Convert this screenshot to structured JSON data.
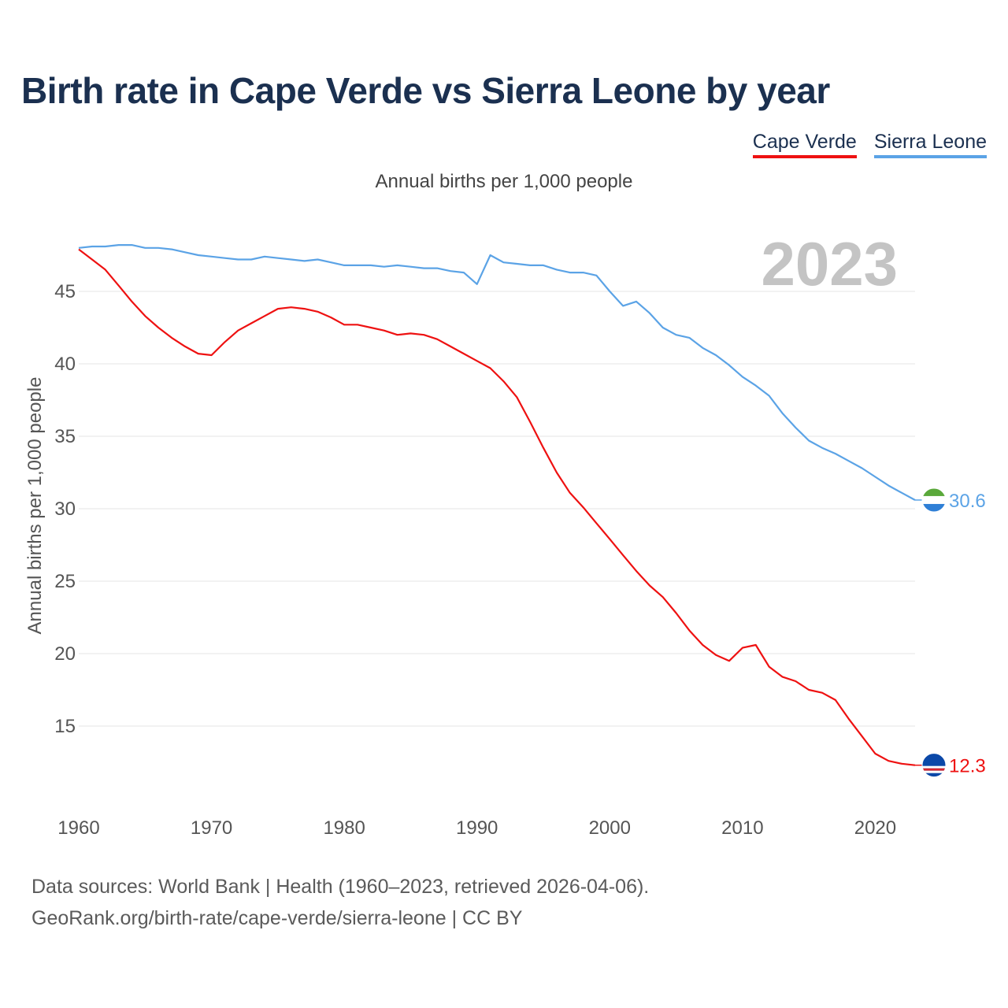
{
  "title": "Birth rate in Cape Verde vs Sierra Leone by year",
  "legend": [
    {
      "label": "Cape Verde",
      "color": "#ee1111"
    },
    {
      "label": "Sierra Leone",
      "color": "#5ba3e6"
    }
  ],
  "subtitle": "Annual births per 1,000 people",
  "year_display": "2023",
  "source": {
    "line1": "Data sources: World Bank | Health (1960–2023, retrieved 2026-04-06).",
    "line2": "GeoRank.org/birth-rate/cape-verde/sierra-leone | CC BY"
  },
  "chart_data": {
    "type": "line",
    "title": "Birth rate in Cape Verde vs Sierra Leone by year",
    "xlabel": "",
    "ylabel": "Annual births per 1,000 people",
    "xlim": [
      1960,
      2023
    ],
    "ylim": [
      10,
      50
    ],
    "x_ticks": [
      1960,
      1970,
      1980,
      1990,
      2000,
      2010,
      2020
    ],
    "y_ticks": [
      15,
      20,
      25,
      30,
      35,
      40,
      45
    ],
    "x": [
      1960,
      1961,
      1962,
      1963,
      1964,
      1965,
      1966,
      1967,
      1968,
      1969,
      1970,
      1971,
      1972,
      1973,
      1974,
      1975,
      1976,
      1977,
      1978,
      1979,
      1980,
      1981,
      1982,
      1983,
      1984,
      1985,
      1986,
      1987,
      1988,
      1989,
      1990,
      1991,
      1992,
      1993,
      1994,
      1995,
      1996,
      1997,
      1998,
      1999,
      2000,
      2001,
      2002,
      2003,
      2004,
      2005,
      2006,
      2007,
      2008,
      2009,
      2010,
      2011,
      2012,
      2013,
      2014,
      2015,
      2016,
      2017,
      2018,
      2019,
      2020,
      2021,
      2022,
      2023
    ],
    "series": [
      {
        "name": "Cape Verde",
        "color": "#ee1111",
        "end_label": "12.3",
        "values": [
          47.9,
          47.2,
          46.5,
          45.4,
          44.3,
          43.3,
          42.5,
          41.8,
          41.2,
          40.7,
          40.6,
          41.5,
          42.3,
          42.8,
          43.3,
          43.8,
          43.9,
          43.8,
          43.6,
          43.2,
          42.7,
          42.7,
          42.5,
          42.3,
          42.0,
          42.1,
          42.0,
          41.7,
          41.2,
          40.7,
          40.2,
          39.7,
          38.8,
          37.7,
          36.0,
          34.2,
          32.5,
          31.1,
          30.1,
          29.0,
          27.9,
          26.8,
          25.7,
          24.7,
          23.9,
          22.8,
          21.6,
          20.6,
          19.9,
          19.5,
          20.4,
          20.6,
          19.1,
          18.4,
          18.1,
          17.5,
          17.3,
          16.8,
          15.5,
          14.3,
          13.1,
          12.6,
          12.4,
          12.3
        ]
      },
      {
        "name": "Sierra Leone",
        "color": "#5ba3e6",
        "end_label": "30.6",
        "values": [
          48.0,
          48.1,
          48.1,
          48.2,
          48.2,
          48.0,
          48.0,
          47.9,
          47.7,
          47.5,
          47.4,
          47.3,
          47.2,
          47.2,
          47.4,
          47.3,
          47.2,
          47.1,
          47.2,
          47.0,
          46.8,
          46.8,
          46.8,
          46.7,
          46.8,
          46.7,
          46.6,
          46.6,
          46.4,
          46.3,
          45.5,
          47.5,
          47.0,
          46.9,
          46.8,
          46.8,
          46.5,
          46.3,
          46.3,
          46.1,
          45.0,
          44.0,
          44.3,
          43.5,
          42.5,
          42.0,
          41.8,
          41.1,
          40.6,
          39.9,
          39.1,
          38.5,
          37.8,
          36.6,
          35.6,
          34.7,
          34.2,
          33.8,
          33.3,
          32.8,
          32.2,
          31.6,
          31.1,
          30.6
        ]
      }
    ]
  }
}
